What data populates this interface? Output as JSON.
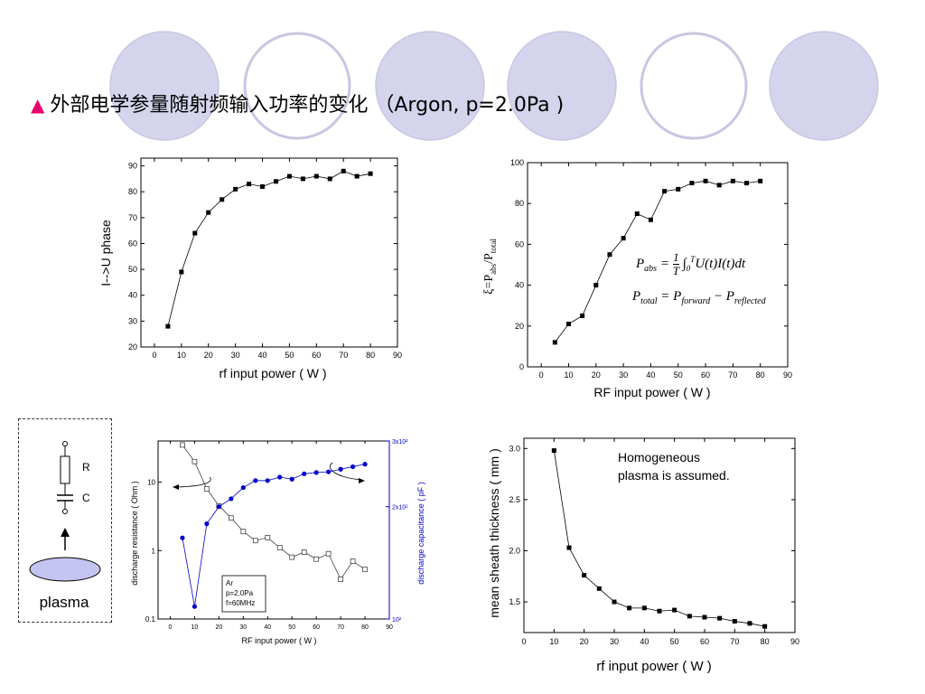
{
  "title": {
    "marker": "▲",
    "text": "外部电学参量随射频输入功率的变化 （Argon, p=2.0Pa )"
  },
  "colors": {
    "background_circle_fill": "#d4d4ec",
    "background_circle_stroke": "#d4d4ec",
    "title_marker": "#e8006e",
    "series_black": "#000000",
    "series_blue": "#0000cc"
  },
  "chart_data": [
    {
      "id": "phase",
      "type": "line",
      "xlabel": "rf input power ( W )",
      "ylabel": "I-->U phase",
      "xlim": [
        -5,
        90
      ],
      "ylim": [
        20,
        93
      ],
      "xticks": [
        0,
        10,
        20,
        30,
        40,
        50,
        60,
        70,
        80,
        90
      ],
      "yticks": [
        20,
        30,
        40,
        50,
        60,
        70,
        80,
        90
      ],
      "x": [
        5,
        10,
        15,
        20,
        25,
        30,
        35,
        40,
        45,
        50,
        55,
        60,
        65,
        70,
        75,
        80
      ],
      "y": [
        28,
        49,
        64,
        72,
        77,
        81,
        83,
        82,
        84,
        86,
        85,
        86,
        85,
        88,
        86,
        87
      ]
    },
    {
      "id": "efficiency",
      "type": "line",
      "xlabel": "RF input power ( W )",
      "ylabel_main": "ξ=P",
      "ylabel_sub1": "abs",
      "ylabel_mid": "/P",
      "ylabel_sub2": "total",
      "xlim": [
        -5,
        90
      ],
      "ylim": [
        0,
        100
      ],
      "xticks": [
        0,
        10,
        20,
        30,
        40,
        50,
        60,
        70,
        80,
        90
      ],
      "yticks": [
        0,
        20,
        40,
        60,
        80,
        100
      ],
      "x": [
        5,
        10,
        15,
        20,
        25,
        30,
        35,
        40,
        45,
        50,
        55,
        60,
        65,
        70,
        75,
        80
      ],
      "y": [
        12,
        21,
        25,
        40,
        55,
        63,
        75,
        72,
        86,
        87,
        90,
        91,
        89,
        91,
        90,
        91
      ],
      "formula_1": "P_abs = (1/T) ∫₀ᵀ U(t) I(t) dt",
      "formula_2": "P_total = P_forward − P_reflected"
    },
    {
      "id": "discharge",
      "type": "line",
      "xlabel": "RF input power ( W )",
      "ylabel_left": "discharge resistance ( Ohm )",
      "ylabel_right": "discharge capacitance ( pF )",
      "xlim": [
        -5,
        90
      ],
      "xticks": [
        0,
        10,
        20,
        30,
        40,
        50,
        60,
        70,
        80,
        90
      ],
      "left_scale": "log",
      "left_ylim": [
        0.1,
        40
      ],
      "left_ytick_labels": [
        "0.1",
        "1",
        "10"
      ],
      "right_scale": "log",
      "right_ylim": [
        100,
        300
      ],
      "right_ytick_labels": [
        "10²",
        "2x10²",
        "3x10²"
      ],
      "annotation": [
        "Ar",
        "p=2.0Pa",
        "f=60MHz"
      ],
      "series": [
        {
          "name": "resistance",
          "axis": "left",
          "x": [
            5,
            10,
            15,
            20,
            25,
            30,
            35,
            40,
            45,
            50,
            55,
            60,
            65,
            70,
            75,
            80
          ],
          "y": [
            35,
            20,
            8,
            4.5,
            3,
            1.9,
            1.4,
            1.55,
            1.1,
            0.8,
            0.95,
            0.75,
            0.9,
            0.38,
            0.7,
            0.53
          ]
        },
        {
          "name": "capacitance",
          "axis": "right",
          "x": [
            5,
            10,
            15,
            20,
            25,
            30,
            35,
            40,
            45,
            50,
            55,
            60,
            65,
            70,
            75,
            80
          ],
          "y": [
            165,
            108,
            180,
            200,
            210,
            225,
            235,
            235,
            240,
            237,
            245,
            247,
            248,
            252,
            256,
            260
          ]
        }
      ]
    },
    {
      "id": "sheath",
      "type": "line",
      "xlabel": "rf input power ( W )",
      "ylabel": "mean sheath thickness ( mm )",
      "xlim": [
        0,
        90
      ],
      "ylim": [
        1.2,
        3.1
      ],
      "xticks": [
        0,
        10,
        20,
        30,
        40,
        50,
        60,
        70,
        80,
        90
      ],
      "yticks": [
        1.5,
        2.0,
        2.5,
        3.0
      ],
      "ytick_labels": [
        "1.5",
        "2.0",
        "2.5",
        "3.0"
      ],
      "annotation": [
        "Homogeneous",
        "plasma is assumed."
      ],
      "x": [
        10,
        15,
        20,
        25,
        30,
        35,
        40,
        45,
        50,
        55,
        60,
        65,
        70,
        75,
        80
      ],
      "y": [
        2.98,
        2.03,
        1.76,
        1.63,
        1.5,
        1.44,
        1.44,
        1.41,
        1.42,
        1.36,
        1.35,
        1.34,
        1.31,
        1.29,
        1.26
      ]
    }
  ],
  "circuit": {
    "r_label": "R",
    "c_label": "C",
    "plasma_label": "plasma"
  }
}
